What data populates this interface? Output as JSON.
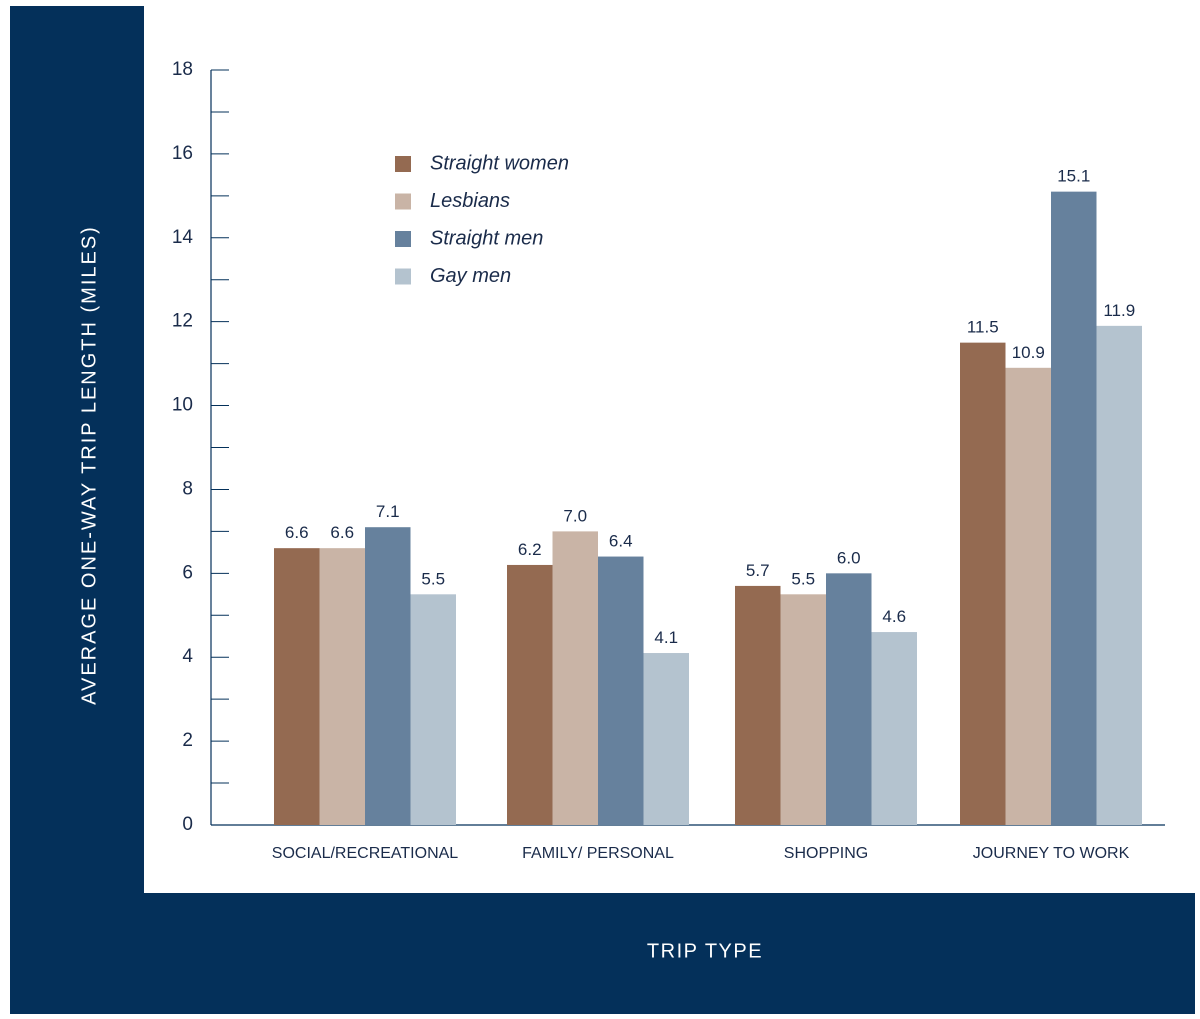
{
  "chart_data": {
    "type": "bar",
    "xlabel": "TRIP TYPE",
    "ylabel": "AVERAGE ONE-WAY TRIP LENGTH (MILES)",
    "categories": [
      "SOCIAL/RECREATIONAL",
      "FAMILY/ PERSONAL",
      "SHOPPING",
      "JOURNEY TO WORK"
    ],
    "series": [
      {
        "name": "Straight women",
        "color": "#946a51",
        "values": [
          6.6,
          6.2,
          5.7,
          11.5
        ],
        "labels": [
          "6.6",
          "6.2",
          "5.7",
          "11.5"
        ]
      },
      {
        "name": "Lesbians",
        "color": "#c9b4a6",
        "values": [
          6.6,
          7.0,
          5.5,
          10.9
        ],
        "labels": [
          "6.6",
          "7.0",
          "5.5",
          "10.9"
        ]
      },
      {
        "name": "Straight men",
        "color": "#66819d",
        "values": [
          7.1,
          6.4,
          6.0,
          15.1
        ],
        "labels": [
          "7.1",
          "6.4",
          "6.0",
          "15.1"
        ]
      },
      {
        "name": "Gay men",
        "color": "#b4c3cf",
        "values": [
          5.5,
          4.1,
          4.6,
          11.9
        ],
        "labels": [
          "5.5",
          "4.1",
          "4.6",
          "11.9"
        ]
      }
    ],
    "ylim": [
      0,
      18
    ],
    "yticks": [
      "0",
      "2",
      "4",
      "6",
      "8",
      "10",
      "12",
      "14",
      "16",
      "18"
    ],
    "ytick_values": [
      0,
      2,
      4,
      6,
      8,
      10,
      12,
      14,
      16,
      18
    ],
    "minor_tick_step": 1,
    "legend_position": "top-left",
    "grid": false
  },
  "colors": {
    "frame_background": "#04305a",
    "plot_background": "#ffffff",
    "axis_text": "#1a2b4a",
    "axis_line": "#04305a"
  }
}
